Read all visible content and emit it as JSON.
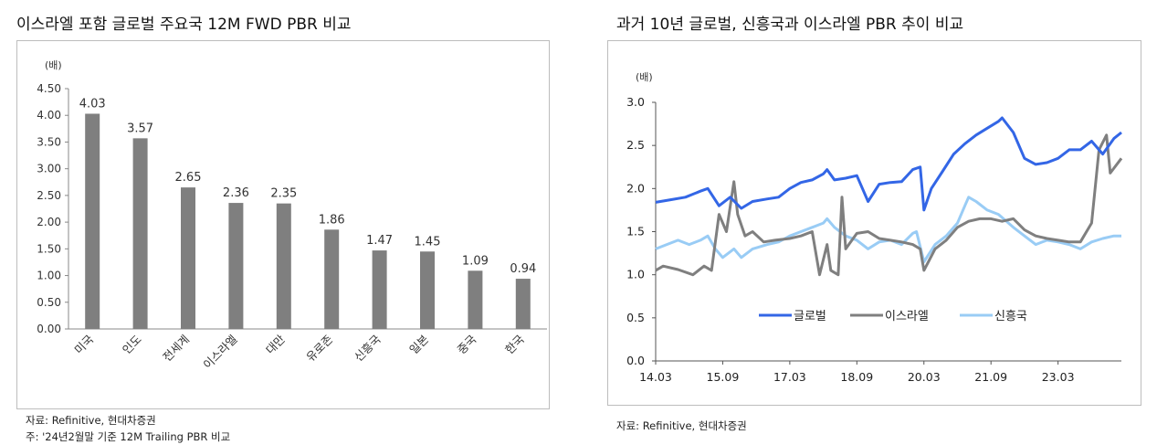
{
  "left": {
    "title": "이스라엘 포함 글로벌 주요국 12M FWD PBR 비교",
    "unit": "(배)",
    "source": "자료: Refinitive, 현대차증권",
    "note": "주: '24년2월말 기준 12M Trailing PBR 비교"
  },
  "right": {
    "title": "과거 10년 글로벌, 신흥국과 이스라엘 PBR 추이 비교",
    "unit": "(배)",
    "source": "자료: Refinitive, 현대차증권"
  },
  "chart_data": [
    {
      "type": "bar",
      "categories": [
        "미국",
        "인도",
        "전세계",
        "이스라엘",
        "대만",
        "유로존",
        "신흥국",
        "일본",
        "중국",
        "한국"
      ],
      "values": [
        4.03,
        3.57,
        2.65,
        2.36,
        2.35,
        1.86,
        1.47,
        1.45,
        1.09,
        0.94
      ],
      "value_labels": [
        "4.03",
        "3.57",
        "2.65",
        "2.36",
        "2.35",
        "1.86",
        "1.47",
        "1.45",
        "1.09",
        "0.94"
      ],
      "ylim": [
        0,
        4.5
      ],
      "yticks": [
        "0.00",
        "0.50",
        "1.00",
        "1.50",
        "2.00",
        "2.50",
        "3.00",
        "3.50",
        "4.00",
        "4.50"
      ],
      "bar_color": "#7f7f7f",
      "grid": false
    },
    {
      "type": "line",
      "x_range": [
        "2014-03",
        "2024-08"
      ],
      "xticks": [
        "14.03",
        "15.09",
        "17.03",
        "18.09",
        "20.03",
        "21.09",
        "23.03"
      ],
      "ylim": [
        0,
        3.0
      ],
      "yticks": [
        "0.0",
        "0.5",
        "1.0",
        "1.5",
        "2.0",
        "2.5",
        "3.0"
      ],
      "legend_position": "inside-lower-center",
      "grid": false,
      "series": [
        {
          "name": "글로벌",
          "color": "#3366e6",
          "points": [
            [
              "2014-03",
              1.84
            ],
            [
              "2014-07",
              1.87
            ],
            [
              "2014-11",
              1.9
            ],
            [
              "2015-03",
              1.97
            ],
            [
              "2015-05",
              2.0
            ],
            [
              "2015-08",
              1.8
            ],
            [
              "2015-11",
              1.9
            ],
            [
              "2016-02",
              1.77
            ],
            [
              "2016-05",
              1.85
            ],
            [
              "2016-09",
              1.88
            ],
            [
              "2016-12",
              1.9
            ],
            [
              "2017-03",
              2.0
            ],
            [
              "2017-06",
              2.07
            ],
            [
              "2017-09",
              2.1
            ],
            [
              "2017-12",
              2.17
            ],
            [
              "2018-01",
              2.22
            ],
            [
              "2018-03",
              2.1
            ],
            [
              "2018-06",
              2.12
            ],
            [
              "2018-09",
              2.15
            ],
            [
              "2018-12",
              1.85
            ],
            [
              "2019-03",
              2.05
            ],
            [
              "2019-06",
              2.07
            ],
            [
              "2019-09",
              2.08
            ],
            [
              "2019-12",
              2.22
            ],
            [
              "2020-02",
              2.25
            ],
            [
              "2020-03",
              1.75
            ],
            [
              "2020-05",
              2.0
            ],
            [
              "2020-08",
              2.2
            ],
            [
              "2020-11",
              2.4
            ],
            [
              "2021-02",
              2.52
            ],
            [
              "2021-05",
              2.62
            ],
            [
              "2021-08",
              2.7
            ],
            [
              "2021-11",
              2.78
            ],
            [
              "2021-12",
              2.82
            ],
            [
              "2022-03",
              2.65
            ],
            [
              "2022-06",
              2.35
            ],
            [
              "2022-09",
              2.28
            ],
            [
              "2022-12",
              2.3
            ],
            [
              "2023-03",
              2.35
            ],
            [
              "2023-06",
              2.45
            ],
            [
              "2023-09",
              2.45
            ],
            [
              "2023-12",
              2.55
            ],
            [
              "2024-03",
              2.4
            ],
            [
              "2024-06",
              2.58
            ],
            [
              "2024-08",
              2.65
            ]
          ]
        },
        {
          "name": "이스라엘",
          "color": "#7f7f7f",
          "points": [
            [
              "2014-03",
              1.05
            ],
            [
              "2014-05",
              1.1
            ],
            [
              "2014-09",
              1.06
            ],
            [
              "2015-01",
              1.0
            ],
            [
              "2015-04",
              1.1
            ],
            [
              "2015-06",
              1.05
            ],
            [
              "2015-08",
              1.7
            ],
            [
              "2015-10",
              1.5
            ],
            [
              "2015-12",
              2.08
            ],
            [
              "2016-01",
              1.7
            ],
            [
              "2016-03",
              1.45
            ],
            [
              "2016-05",
              1.5
            ],
            [
              "2016-08",
              1.38
            ],
            [
              "2016-11",
              1.4
            ],
            [
              "2017-03",
              1.42
            ],
            [
              "2017-06",
              1.45
            ],
            [
              "2017-09",
              1.5
            ],
            [
              "2017-11",
              1.0
            ],
            [
              "2018-01",
              1.35
            ],
            [
              "2018-02",
              1.05
            ],
            [
              "2018-04",
              1.0
            ],
            [
              "2018-05",
              1.9
            ],
            [
              "2018-06",
              1.3
            ],
            [
              "2018-09",
              1.48
            ],
            [
              "2018-12",
              1.5
            ],
            [
              "2019-03",
              1.42
            ],
            [
              "2019-06",
              1.4
            ],
            [
              "2019-09",
              1.38
            ],
            [
              "2019-12",
              1.35
            ],
            [
              "2020-02",
              1.3
            ],
            [
              "2020-03",
              1.05
            ],
            [
              "2020-06",
              1.3
            ],
            [
              "2020-09",
              1.4
            ],
            [
              "2020-12",
              1.55
            ],
            [
              "2021-03",
              1.62
            ],
            [
              "2021-06",
              1.65
            ],
            [
              "2021-09",
              1.65
            ],
            [
              "2021-12",
              1.62
            ],
            [
              "2022-03",
              1.65
            ],
            [
              "2022-06",
              1.52
            ],
            [
              "2022-09",
              1.45
            ],
            [
              "2022-12",
              1.42
            ],
            [
              "2023-03",
              1.4
            ],
            [
              "2023-06",
              1.38
            ],
            [
              "2023-09",
              1.38
            ],
            [
              "2023-12",
              1.6
            ],
            [
              "2024-02",
              2.45
            ],
            [
              "2024-04",
              2.62
            ],
            [
              "2024-05",
              2.18
            ],
            [
              "2024-08",
              2.35
            ]
          ]
        },
        {
          "name": "신흥국",
          "color": "#99ccf5",
          "points": [
            [
              "2014-03",
              1.3
            ],
            [
              "2014-06",
              1.35
            ],
            [
              "2014-09",
              1.4
            ],
            [
              "2014-12",
              1.35
            ],
            [
              "2015-03",
              1.4
            ],
            [
              "2015-05",
              1.45
            ],
            [
              "2015-07",
              1.3
            ],
            [
              "2015-09",
              1.2
            ],
            [
              "2015-12",
              1.3
            ],
            [
              "2016-02",
              1.2
            ],
            [
              "2016-05",
              1.3
            ],
            [
              "2016-09",
              1.35
            ],
            [
              "2016-12",
              1.38
            ],
            [
              "2017-03",
              1.45
            ],
            [
              "2017-06",
              1.5
            ],
            [
              "2017-09",
              1.55
            ],
            [
              "2017-12",
              1.6
            ],
            [
              "2018-01",
              1.65
            ],
            [
              "2018-03",
              1.55
            ],
            [
              "2018-06",
              1.45
            ],
            [
              "2018-09",
              1.4
            ],
            [
              "2018-12",
              1.3
            ],
            [
              "2019-03",
              1.38
            ],
            [
              "2019-06",
              1.4
            ],
            [
              "2019-09",
              1.35
            ],
            [
              "2019-12",
              1.48
            ],
            [
              "2020-01",
              1.5
            ],
            [
              "2020-03",
              1.15
            ],
            [
              "2020-06",
              1.35
            ],
            [
              "2020-09",
              1.45
            ],
            [
              "2020-12",
              1.6
            ],
            [
              "2021-02",
              1.8
            ],
            [
              "2021-03",
              1.9
            ],
            [
              "2021-05",
              1.85
            ],
            [
              "2021-08",
              1.75
            ],
            [
              "2021-11",
              1.7
            ],
            [
              "2022-03",
              1.55
            ],
            [
              "2022-06",
              1.45
            ],
            [
              "2022-09",
              1.35
            ],
            [
              "2022-12",
              1.4
            ],
            [
              "2023-03",
              1.38
            ],
            [
              "2023-06",
              1.35
            ],
            [
              "2023-09",
              1.3
            ],
            [
              "2023-12",
              1.38
            ],
            [
              "2024-03",
              1.42
            ],
            [
              "2024-06",
              1.45
            ],
            [
              "2024-08",
              1.45
            ]
          ]
        }
      ]
    }
  ]
}
